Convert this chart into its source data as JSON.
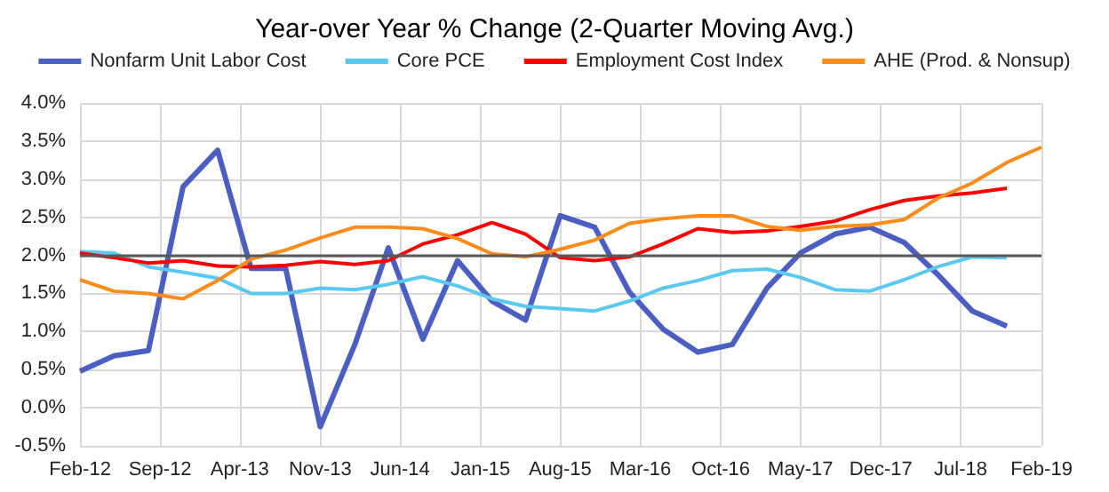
{
  "chart_data": {
    "type": "line",
    "title": "Year-over Year % Change (2-Quarter Moving Avg.)",
    "x": [
      "2012-02",
      "2012-05",
      "2012-08",
      "2012-11",
      "2013-02",
      "2013-05",
      "2013-08",
      "2013-11",
      "2014-02",
      "2014-05",
      "2014-08",
      "2014-11",
      "2015-02",
      "2015-05",
      "2015-08",
      "2015-11",
      "2016-02",
      "2016-05",
      "2016-08",
      "2016-11",
      "2017-02",
      "2017-05",
      "2017-08",
      "2017-11",
      "2018-02",
      "2018-05",
      "2018-08",
      "2018-11"
    ],
    "series": [
      {
        "name": "Nonfarm Unit Labor Cost",
        "color": "#4a5fc1",
        "values": [
          0.48,
          0.68,
          0.75,
          2.9,
          3.38,
          1.83,
          1.83,
          -0.25,
          0.83,
          2.1,
          0.9,
          1.93,
          1.4,
          1.15,
          2.52,
          2.37,
          1.52,
          1.03,
          0.73,
          0.83,
          1.57,
          2.03,
          2.28,
          2.37,
          2.17,
          1.75,
          1.27,
          1.07
        ]
      },
      {
        "name": "Core PCE",
        "color": "#5bc8f0",
        "values": [
          2.05,
          2.03,
          1.85,
          1.78,
          1.7,
          1.5,
          1.5,
          1.57,
          1.55,
          1.62,
          1.72,
          1.6,
          1.43,
          1.33,
          1.3,
          1.27,
          1.4,
          1.57,
          1.67,
          1.8,
          1.82,
          1.71,
          1.55,
          1.53,
          1.68,
          1.85,
          1.98,
          1.97
        ]
      },
      {
        "name": "Employment Cost Index",
        "color": "#ff0000",
        "values": [
          2.03,
          1.97,
          1.9,
          1.93,
          1.86,
          1.85,
          1.87,
          1.92,
          1.88,
          1.93,
          2.15,
          2.27,
          2.43,
          2.28,
          1.97,
          1.93,
          1.98,
          2.15,
          2.35,
          2.3,
          2.32,
          2.38,
          2.45,
          2.6,
          2.72,
          2.78,
          2.82,
          2.88
        ]
      },
      {
        "name": "AHE (Prod. & Nonsup)",
        "color": "#ff8c1a",
        "x": [
          "2012-02",
          "2012-05",
          "2012-08",
          "2012-11",
          "2013-02",
          "2013-05",
          "2013-08",
          "2013-11",
          "2014-02",
          "2014-05",
          "2014-08",
          "2014-11",
          "2015-02",
          "2015-05",
          "2015-08",
          "2015-11",
          "2016-02",
          "2016-05",
          "2016-08",
          "2016-11",
          "2017-02",
          "2017-05",
          "2017-08",
          "2017-11",
          "2018-02",
          "2018-05",
          "2018-08",
          "2018-11",
          "2019-02"
        ],
        "values": [
          1.68,
          1.53,
          1.5,
          1.43,
          1.67,
          1.95,
          2.07,
          2.23,
          2.37,
          2.37,
          2.35,
          2.22,
          2.02,
          1.98,
          2.08,
          2.2,
          2.42,
          2.48,
          2.52,
          2.52,
          2.38,
          2.33,
          2.38,
          2.4,
          2.47,
          2.75,
          2.95,
          3.22,
          3.42
        ]
      }
    ],
    "xlim": [
      "2012-02",
      "2019-02"
    ],
    "xticks": [
      {
        "value": "2012-02",
        "label": "Feb-12"
      },
      {
        "value": "2012-09",
        "label": "Sep-12"
      },
      {
        "value": "2013-04",
        "label": "Apr-13"
      },
      {
        "value": "2013-11",
        "label": "Nov-13"
      },
      {
        "value": "2014-06",
        "label": "Jun-14"
      },
      {
        "value": "2015-01",
        "label": "Jan-15"
      },
      {
        "value": "2015-08",
        "label": "Aug-15"
      },
      {
        "value": "2016-03",
        "label": "Mar-16"
      },
      {
        "value": "2016-10",
        "label": "Oct-16"
      },
      {
        "value": "2017-05",
        "label": "May-17"
      },
      {
        "value": "2017-12",
        "label": "Dec-17"
      },
      {
        "value": "2018-07",
        "label": "Jul-18"
      },
      {
        "value": "2019-02",
        "label": "Feb-19"
      }
    ],
    "ylim": [
      -0.5,
      4.0
    ],
    "yticks": [
      {
        "value": -0.5,
        "label": "-0.5%"
      },
      {
        "value": 0,
        "label": "0.0%"
      },
      {
        "value": 0.5,
        "label": "0.5%"
      },
      {
        "value": 1,
        "label": "1.0%"
      },
      {
        "value": 1.5,
        "label": "1.5%"
      },
      {
        "value": 2,
        "label": "2.0%"
      },
      {
        "value": 2.5,
        "label": "2.5%"
      },
      {
        "value": 3,
        "label": "3.0%"
      },
      {
        "value": 3.5,
        "label": "3.5%"
      },
      {
        "value": 4,
        "label": "4.0%"
      }
    ],
    "ref_lines": [
      {
        "axis": "y",
        "value": 2,
        "color": "#595959"
      }
    ],
    "grid": true,
    "legend": "top",
    "marker": "none",
    "line_style": "solid"
  }
}
